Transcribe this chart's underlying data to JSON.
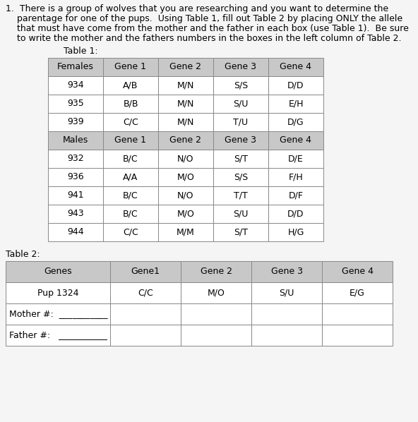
{
  "question_lines": [
    "1.  There is a group of wolves that you are researching and you want to determine the",
    "    parentage for one of the pups.  Using Table 1, fill out Table 2 by placing ONLY the allele",
    "    that must have come from the mother and the father in each box (use Table 1).  Be sure",
    "    to write the mother and the fathers numbers in the boxes in the left column of Table 2."
  ],
  "table1_label": "Table 1:",
  "table1_headers": [
    "Females",
    "Gene 1",
    "Gene 2",
    "Gene 3",
    "Gene 4"
  ],
  "table1_females": [
    [
      "934",
      "A/B",
      "M/N",
      "S/S",
      "D/D"
    ],
    [
      "935",
      "B/B",
      "M/N",
      "S/U",
      "E/H"
    ],
    [
      "939",
      "C/C",
      "M/N",
      "T/U",
      "D/G"
    ]
  ],
  "table1_male_headers": [
    "Males",
    "Gene 1",
    "Gene 2",
    "Gene 3",
    "Gene 4"
  ],
  "table1_males": [
    [
      "932",
      "B/C",
      "N/O",
      "S/T",
      "D/E"
    ],
    [
      "936",
      "A/A",
      "M/O",
      "S/S",
      "F/H"
    ],
    [
      "941",
      "B/C",
      "N/O",
      "T/T",
      "D/F"
    ],
    [
      "943",
      "B/C",
      "M/O",
      "S/U",
      "D/D"
    ],
    [
      "944",
      "C/C",
      "M/M",
      "S/T",
      "H/G"
    ]
  ],
  "table2_label": "Table 2:",
  "table2_headers": [
    "Genes",
    "Gene1",
    "Gene 2",
    "Gene 3",
    "Gene 4"
  ],
  "table2_pup_row": [
    "Pup 1324",
    "C/C",
    "M/O",
    "S/U",
    "E/G"
  ],
  "header_bg": "#c8c8c8",
  "cell_bg": "#ffffff",
  "border_color": "#888888",
  "text_color": "#000000",
  "bg_color": "#f5f5f5",
  "font_size_text": 9.0,
  "font_size_table": 9.0,
  "fig_width": 5.92,
  "fig_height": 5.98
}
